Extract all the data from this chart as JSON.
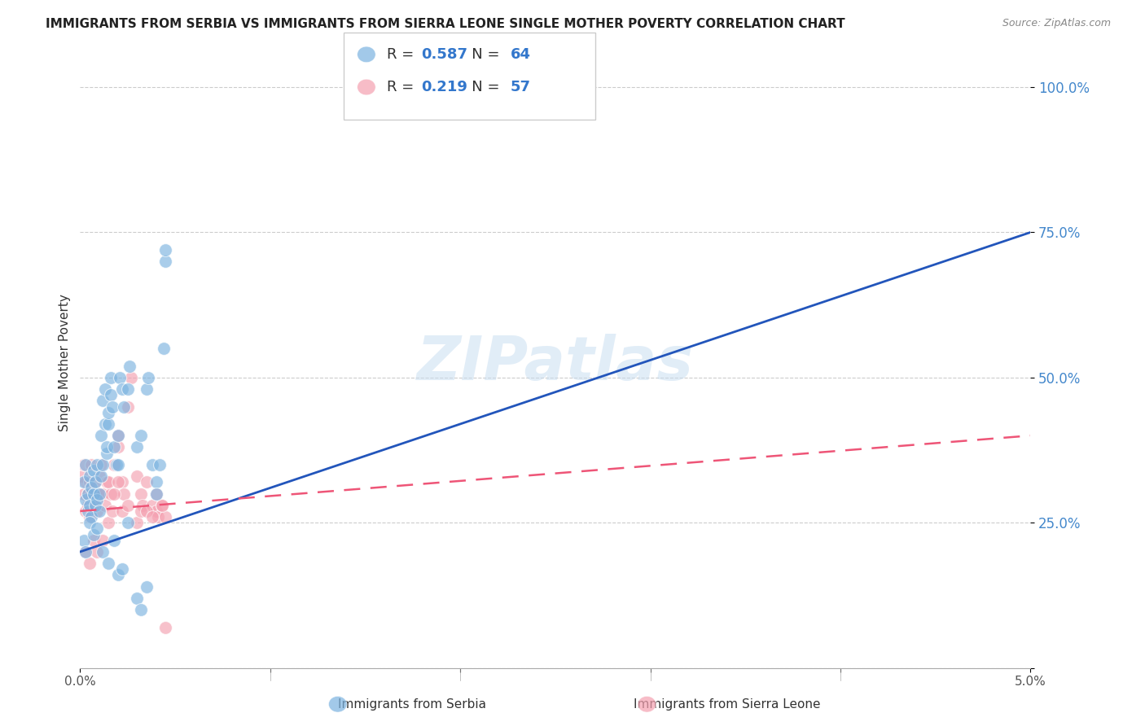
{
  "title": "IMMIGRANTS FROM SERBIA VS IMMIGRANTS FROM SIERRA LEONE SINGLE MOTHER POVERTY CORRELATION CHART",
  "source": "Source: ZipAtlas.com",
  "ylabel": "Single Mother Poverty",
  "legend_serbia": "Immigrants from Serbia",
  "legend_sl": "Immigrants from Sierra Leone",
  "r_serbia": 0.587,
  "n_serbia": 64,
  "r_sl": 0.219,
  "n_sl": 57,
  "color_serbia": "#7BB3E0",
  "color_sl": "#F4A0B0",
  "color_serbia_line": "#2255BB",
  "color_sl_line": "#EE5577",
  "watermark": "ZIPatlas",
  "serbia_x": [
    0.0002,
    0.0003,
    0.0003,
    0.0004,
    0.0004,
    0.0005,
    0.0005,
    0.0006,
    0.0006,
    0.0007,
    0.0007,
    0.0008,
    0.0008,
    0.0009,
    0.0009,
    0.001,
    0.001,
    0.0011,
    0.0011,
    0.0012,
    0.0012,
    0.0013,
    0.0013,
    0.0014,
    0.0014,
    0.0015,
    0.0015,
    0.0016,
    0.0016,
    0.0017,
    0.0018,
    0.0019,
    0.002,
    0.002,
    0.0021,
    0.0022,
    0.0023,
    0.0025,
    0.0026,
    0.003,
    0.0032,
    0.0035,
    0.0036,
    0.0038,
    0.004,
    0.0042,
    0.0044,
    0.0045,
    0.0002,
    0.0003,
    0.0005,
    0.0007,
    0.0009,
    0.0012,
    0.0015,
    0.0018,
    0.002,
    0.0022,
    0.0025,
    0.003,
    0.0032,
    0.0035,
    0.004,
    0.0045
  ],
  "serbia_y": [
    0.32,
    0.29,
    0.35,
    0.27,
    0.3,
    0.28,
    0.33,
    0.26,
    0.31,
    0.3,
    0.34,
    0.28,
    0.32,
    0.29,
    0.35,
    0.3,
    0.27,
    0.33,
    0.4,
    0.35,
    0.46,
    0.48,
    0.42,
    0.37,
    0.38,
    0.42,
    0.44,
    0.47,
    0.5,
    0.45,
    0.38,
    0.35,
    0.4,
    0.35,
    0.5,
    0.48,
    0.45,
    0.48,
    0.52,
    0.38,
    0.4,
    0.48,
    0.5,
    0.35,
    0.32,
    0.35,
    0.55,
    0.7,
    0.22,
    0.2,
    0.25,
    0.23,
    0.24,
    0.2,
    0.18,
    0.22,
    0.16,
    0.17,
    0.25,
    0.12,
    0.1,
    0.14,
    0.3,
    0.72
  ],
  "sl_x": [
    0.0001,
    0.0002,
    0.0002,
    0.0003,
    0.0003,
    0.0004,
    0.0004,
    0.0005,
    0.0005,
    0.0006,
    0.0006,
    0.0007,
    0.0008,
    0.0008,
    0.0009,
    0.001,
    0.001,
    0.0011,
    0.0012,
    0.0013,
    0.0014,
    0.0015,
    0.0016,
    0.0017,
    0.0018,
    0.002,
    0.002,
    0.0022,
    0.0023,
    0.0025,
    0.0027,
    0.003,
    0.0032,
    0.0033,
    0.0035,
    0.0038,
    0.004,
    0.0041,
    0.0043,
    0.0045,
    0.0003,
    0.0005,
    0.0007,
    0.0009,
    0.0012,
    0.0015,
    0.0018,
    0.002,
    0.0022,
    0.0025,
    0.003,
    0.0032,
    0.0035,
    0.0038,
    0.004,
    0.0043,
    0.0045
  ],
  "sl_y": [
    0.33,
    0.3,
    0.35,
    0.27,
    0.32,
    0.28,
    0.3,
    0.26,
    0.32,
    0.3,
    0.35,
    0.28,
    0.32,
    0.3,
    0.27,
    0.33,
    0.3,
    0.35,
    0.3,
    0.28,
    0.32,
    0.25,
    0.3,
    0.27,
    0.35,
    0.38,
    0.4,
    0.32,
    0.3,
    0.45,
    0.5,
    0.33,
    0.3,
    0.28,
    0.32,
    0.28,
    0.27,
    0.26,
    0.28,
    0.26,
    0.2,
    0.18,
    0.22,
    0.2,
    0.22,
    0.32,
    0.3,
    0.32,
    0.27,
    0.28,
    0.25,
    0.27,
    0.27,
    0.26,
    0.3,
    0.28,
    0.07
  ],
  "ylim": [
    0.0,
    1.05
  ],
  "xlim": [
    0.0,
    0.05
  ],
  "yticks": [
    0.0,
    0.25,
    0.5,
    0.75,
    1.0
  ],
  "ytick_labels": [
    "",
    "25.0%",
    "50.0%",
    "75.0%",
    "100.0%"
  ],
  "xticks": [
    0.0,
    0.01,
    0.02,
    0.03,
    0.04,
    0.05
  ],
  "xtick_labels": [
    "0.0%",
    "",
    "",
    "",
    "",
    "5.0%"
  ],
  "background_color": "#FFFFFF",
  "title_fontsize": 11,
  "source_fontsize": 9,
  "watermark_color": "#C5DCF0",
  "watermark_alpha": 0.5,
  "serbia_trendline_x0": 0.0,
  "serbia_trendline_y0": 0.2,
  "serbia_trendline_x1": 0.05,
  "serbia_trendline_y1": 0.75,
  "sl_trendline_x0": 0.0,
  "sl_trendline_y0": 0.27,
  "sl_trendline_x1": 0.05,
  "sl_trendline_y1": 0.4
}
